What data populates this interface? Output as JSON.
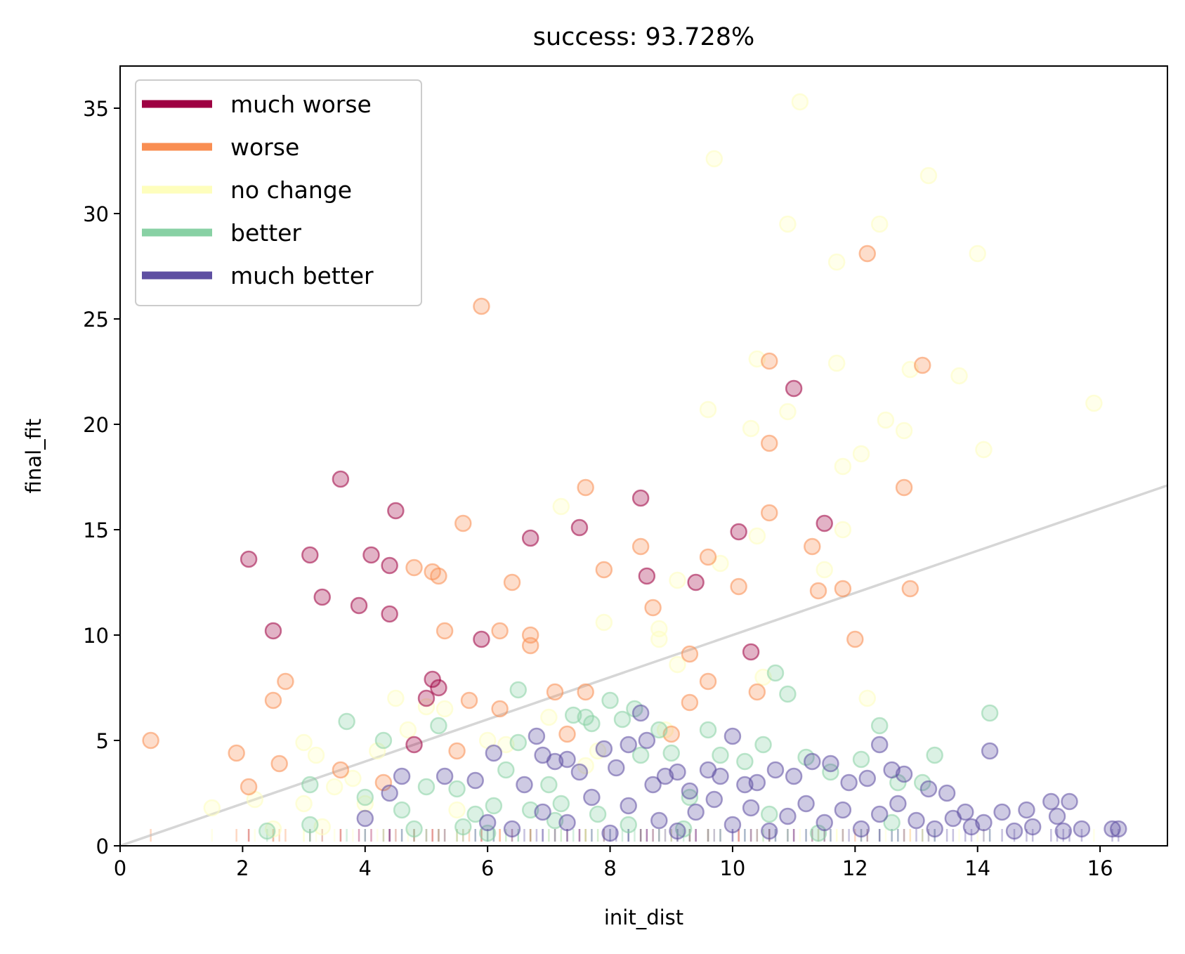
{
  "chart_data": {
    "type": "scatter",
    "title": "success: 93.728%",
    "xlabel": "init_dist",
    "ylabel": "final_fit",
    "xlim": [
      0,
      17.1
    ],
    "ylim": [
      0,
      37
    ],
    "xticks": [
      0,
      2,
      4,
      6,
      8,
      10,
      12,
      14,
      16
    ],
    "yticks": [
      0,
      5,
      10,
      15,
      20,
      25,
      30,
      35
    ],
    "grid": false,
    "legend_position": "upper left",
    "reference_line": {
      "x": [
        0,
        17.1
      ],
      "y": [
        0,
        17.1
      ],
      "color": "#bbbbbb"
    },
    "series": [
      {
        "name": "much worse",
        "color": "#9e0142",
        "points": [
          [
            2.1,
            13.6
          ],
          [
            2.5,
            10.2
          ],
          [
            3.1,
            13.8
          ],
          [
            3.3,
            11.8
          ],
          [
            3.6,
            17.4
          ],
          [
            3.9,
            11.4
          ],
          [
            4.1,
            13.8
          ],
          [
            4.4,
            13.3
          ],
          [
            4.4,
            11.0
          ],
          [
            4.5,
            15.9
          ],
          [
            5.1,
            7.9
          ],
          [
            5.2,
            7.5
          ],
          [
            5.9,
            9.8
          ],
          [
            6.7,
            14.6
          ],
          [
            7.5,
            15.1
          ],
          [
            8.5,
            16.5
          ],
          [
            8.6,
            12.8
          ],
          [
            9.4,
            12.5
          ],
          [
            10.1,
            14.9
          ],
          [
            10.3,
            9.2
          ],
          [
            11.0,
            21.7
          ],
          [
            11.5,
            15.3
          ],
          [
            4.8,
            4.8
          ],
          [
            5.0,
            7.0
          ]
        ]
      },
      {
        "name": "worse",
        "color": "#f98e52",
        "points": [
          [
            0.5,
            5.0
          ],
          [
            1.9,
            4.4
          ],
          [
            2.1,
            2.8
          ],
          [
            2.5,
            6.9
          ],
          [
            2.6,
            3.9
          ],
          [
            2.7,
            7.8
          ],
          [
            3.6,
            3.6
          ],
          [
            4.3,
            3.0
          ],
          [
            4.8,
            13.2
          ],
          [
            5.1,
            13.0
          ],
          [
            5.2,
            12.8
          ],
          [
            5.3,
            10.2
          ],
          [
            5.5,
            4.5
          ],
          [
            5.6,
            15.3
          ],
          [
            5.7,
            6.9
          ],
          [
            5.9,
            25.6
          ],
          [
            6.2,
            10.2
          ],
          [
            6.2,
            6.5
          ],
          [
            6.4,
            12.5
          ],
          [
            6.7,
            10.0
          ],
          [
            6.7,
            9.5
          ],
          [
            7.1,
            7.3
          ],
          [
            7.3,
            5.3
          ],
          [
            7.6,
            17.0
          ],
          [
            7.6,
            7.3
          ],
          [
            7.9,
            13.1
          ],
          [
            8.7,
            11.3
          ],
          [
            8.5,
            14.2
          ],
          [
            9.0,
            5.3
          ],
          [
            9.3,
            9.1
          ],
          [
            9.3,
            6.8
          ],
          [
            9.6,
            13.7
          ],
          [
            9.6,
            7.8
          ],
          [
            10.1,
            12.3
          ],
          [
            10.4,
            7.3
          ],
          [
            10.6,
            23.0
          ],
          [
            10.6,
            19.1
          ],
          [
            10.6,
            15.8
          ],
          [
            11.3,
            14.2
          ],
          [
            11.4,
            12.1
          ],
          [
            11.8,
            12.2
          ],
          [
            12.2,
            28.1
          ],
          [
            12.0,
            9.8
          ],
          [
            12.8,
            17.0
          ],
          [
            12.9,
            12.2
          ],
          [
            13.1,
            22.8
          ]
        ]
      },
      {
        "name": "no change",
        "color": "#fefebd",
        "points": [
          [
            1.5,
            1.8
          ],
          [
            2.2,
            2.2
          ],
          [
            2.5,
            0.8
          ],
          [
            3.0,
            4.9
          ],
          [
            3.2,
            4.3
          ],
          [
            3.3,
            0.9
          ],
          [
            3.0,
            2.0
          ],
          [
            3.5,
            2.8
          ],
          [
            3.8,
            3.2
          ],
          [
            4.0,
            2.0
          ],
          [
            4.2,
            4.5
          ],
          [
            4.5,
            7.0
          ],
          [
            4.7,
            5.5
          ],
          [
            5.0,
            6.6
          ],
          [
            5.3,
            6.5
          ],
          [
            5.5,
            1.7
          ],
          [
            6.0,
            5.0
          ],
          [
            6.3,
            4.8
          ],
          [
            7.0,
            6.1
          ],
          [
            7.2,
            16.1
          ],
          [
            7.6,
            3.8
          ],
          [
            7.8,
            4.5
          ],
          [
            7.9,
            10.6
          ],
          [
            8.8,
            10.3
          ],
          [
            8.8,
            9.8
          ],
          [
            8.9,
            5.5
          ],
          [
            9.1,
            8.6
          ],
          [
            9.1,
            12.6
          ],
          [
            9.6,
            20.7
          ],
          [
            9.7,
            32.6
          ],
          [
            9.8,
            13.4
          ],
          [
            10.3,
            19.8
          ],
          [
            10.4,
            14.7
          ],
          [
            10.4,
            23.1
          ],
          [
            10.5,
            8.0
          ],
          [
            10.9,
            29.5
          ],
          [
            10.9,
            20.6
          ],
          [
            11.1,
            35.3
          ],
          [
            11.5,
            13.1
          ],
          [
            11.7,
            27.7
          ],
          [
            11.7,
            22.9
          ],
          [
            11.8,
            18.0
          ],
          [
            11.8,
            15.0
          ],
          [
            12.1,
            18.6
          ],
          [
            12.2,
            7.0
          ],
          [
            12.4,
            29.5
          ],
          [
            12.5,
            20.2
          ],
          [
            12.8,
            19.7
          ],
          [
            12.9,
            22.6
          ],
          [
            13.2,
            31.8
          ],
          [
            13.7,
            22.3
          ],
          [
            14.0,
            28.1
          ],
          [
            14.1,
            18.8
          ],
          [
            15.9,
            21.0
          ]
        ]
      },
      {
        "name": "better",
        "color": "#88d1a4",
        "points": [
          [
            2.4,
            0.7
          ],
          [
            3.1,
            1.0
          ],
          [
            3.1,
            2.9
          ],
          [
            3.7,
            5.9
          ],
          [
            4.0,
            2.3
          ],
          [
            4.3,
            5.0
          ],
          [
            4.6,
            1.7
          ],
          [
            4.8,
            0.8
          ],
          [
            5.0,
            2.8
          ],
          [
            5.2,
            5.7
          ],
          [
            5.5,
            2.7
          ],
          [
            5.8,
            1.5
          ],
          [
            6.1,
            1.9
          ],
          [
            6.3,
            3.6
          ],
          [
            6.5,
            4.9
          ],
          [
            6.5,
            7.4
          ],
          [
            6.7,
            1.7
          ],
          [
            7.0,
            2.9
          ],
          [
            7.2,
            2.0
          ],
          [
            7.4,
            6.2
          ],
          [
            7.6,
            6.1
          ],
          [
            7.7,
            5.8
          ],
          [
            7.8,
            1.5
          ],
          [
            8.0,
            6.9
          ],
          [
            8.2,
            6.0
          ],
          [
            8.4,
            6.5
          ],
          [
            8.5,
            4.3
          ],
          [
            8.8,
            5.5
          ],
          [
            9.0,
            4.4
          ],
          [
            9.3,
            2.3
          ],
          [
            9.6,
            5.5
          ],
          [
            9.8,
            4.3
          ],
          [
            10.2,
            4.0
          ],
          [
            10.5,
            4.8
          ],
          [
            10.7,
            8.2
          ],
          [
            10.9,
            7.2
          ],
          [
            11.2,
            4.2
          ],
          [
            11.6,
            3.5
          ],
          [
            12.1,
            4.1
          ],
          [
            12.4,
            5.7
          ],
          [
            12.7,
            3.0
          ],
          [
            13.1,
            3.0
          ],
          [
            13.3,
            4.3
          ],
          [
            14.2,
            6.3
          ],
          [
            5.6,
            0.9
          ],
          [
            6.0,
            0.6
          ],
          [
            7.1,
            1.2
          ],
          [
            8.3,
            1.0
          ],
          [
            9.2,
            0.8
          ],
          [
            10.6,
            1.5
          ],
          [
            11.4,
            0.6
          ],
          [
            12.6,
            1.1
          ]
        ]
      },
      {
        "name": "much better",
        "color": "#5e4fa2",
        "points": [
          [
            4.0,
            1.3
          ],
          [
            4.4,
            2.5
          ],
          [
            4.6,
            3.3
          ],
          [
            5.3,
            3.3
          ],
          [
            5.8,
            3.1
          ],
          [
            6.1,
            4.4
          ],
          [
            6.6,
            2.9
          ],
          [
            6.8,
            5.2
          ],
          [
            6.9,
            4.3
          ],
          [
            7.1,
            4.0
          ],
          [
            7.3,
            4.1
          ],
          [
            7.5,
            3.5
          ],
          [
            7.9,
            4.6
          ],
          [
            8.1,
            3.7
          ],
          [
            8.3,
            4.8
          ],
          [
            8.5,
            6.3
          ],
          [
            8.6,
            5.0
          ],
          [
            8.7,
            2.9
          ],
          [
            8.9,
            3.3
          ],
          [
            9.1,
            3.5
          ],
          [
            9.3,
            2.6
          ],
          [
            9.6,
            3.6
          ],
          [
            9.8,
            3.3
          ],
          [
            10.0,
            5.2
          ],
          [
            10.2,
            2.9
          ],
          [
            10.4,
            3.0
          ],
          [
            10.7,
            3.6
          ],
          [
            11.0,
            3.3
          ],
          [
            11.3,
            4.0
          ],
          [
            11.6,
            3.9
          ],
          [
            11.9,
            3.0
          ],
          [
            12.2,
            3.2
          ],
          [
            12.4,
            4.8
          ],
          [
            12.6,
            3.6
          ],
          [
            12.8,
            3.4
          ],
          [
            13.2,
            2.7
          ],
          [
            13.5,
            2.5
          ],
          [
            13.8,
            1.6
          ],
          [
            14.2,
            4.5
          ],
          [
            14.4,
            1.6
          ],
          [
            14.8,
            1.7
          ],
          [
            15.2,
            2.1
          ],
          [
            15.3,
            1.4
          ],
          [
            15.4,
            0.7
          ],
          [
            15.5,
            2.1
          ],
          [
            15.7,
            0.8
          ],
          [
            16.2,
            0.8
          ],
          [
            16.3,
            0.8
          ],
          [
            6.0,
            1.1
          ],
          [
            6.4,
            0.8
          ],
          [
            6.9,
            1.6
          ],
          [
            7.3,
            1.1
          ],
          [
            7.7,
            2.3
          ],
          [
            8.0,
            0.6
          ],
          [
            8.3,
            1.9
          ],
          [
            8.8,
            1.2
          ],
          [
            9.1,
            0.7
          ],
          [
            9.4,
            1.6
          ],
          [
            9.7,
            2.2
          ],
          [
            10.0,
            1.0
          ],
          [
            10.3,
            1.8
          ],
          [
            10.6,
            0.7
          ],
          [
            10.9,
            1.4
          ],
          [
            11.2,
            2.0
          ],
          [
            11.5,
            1.1
          ],
          [
            11.8,
            1.7
          ],
          [
            12.1,
            0.8
          ],
          [
            12.4,
            1.5
          ],
          [
            12.7,
            2.0
          ],
          [
            13.0,
            1.2
          ],
          [
            13.3,
            0.8
          ],
          [
            13.6,
            1.3
          ],
          [
            13.9,
            0.9
          ],
          [
            14.1,
            1.1
          ],
          [
            14.6,
            0.7
          ],
          [
            14.9,
            0.9
          ]
        ]
      }
    ]
  }
}
